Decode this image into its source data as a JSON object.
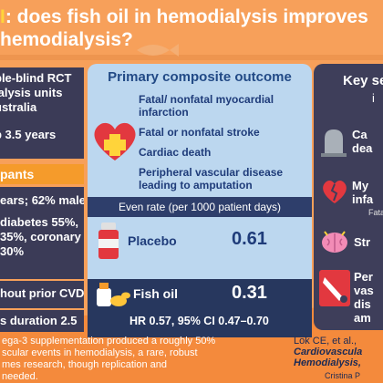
{
  "header": {
    "line1_accent": "I",
    "line1_rest": ": does fish oil in hemodialysis improves",
    "line2": "hemodialysis?"
  },
  "left_panel": {
    "design_lines": [
      "ble-blind RCT",
      "ialysis units",
      "ustralia"
    ],
    "followup": "p 3.5 years",
    "participants_label": "pants",
    "demographics": "ears; 62% male",
    "comorbidities_lines": [
      "diabetes 55%,",
      "35%, coronary",
      "30%"
    ],
    "prior_cvd": "hout prior CVD",
    "duration": "s duration 2.5"
  },
  "center_panel": {
    "title": "Primary composite outcome",
    "outcomes": [
      "Fatal/ nonfatal myocardial infarction",
      "Fatal or nonfatal stroke",
      "Cardiac death",
      "Peripheral vascular disease leading to amputation"
    ],
    "event_rate_header": "Even rate (per 1000 patient days)",
    "placebo_label": "Placebo",
    "placebo_value": "0.61",
    "fishoil_label": "Fish oil",
    "fishoil_value": "0.31",
    "hazard_ratio": "HR 0.57, 95% CI 0.47–0.70"
  },
  "right_panel": {
    "title": "Key se",
    "subtitle": "i",
    "items": [
      {
        "lines": [
          "Ca",
          "dea"
        ],
        "note": ""
      },
      {
        "lines": [
          "My",
          "infa"
        ],
        "note": "Fata"
      },
      {
        "lines": [
          "Str"
        ],
        "note": ""
      },
      {
        "lines": [
          "Per",
          "vas",
          "dis",
          "am"
        ],
        "note": ""
      }
    ]
  },
  "bottom": {
    "summary_lines": [
      "ega-3 supplementation produced a roughly 50%",
      "scular events in hemodialysis, a rare, robust",
      "mes research, though replication and",
      "needed."
    ],
    "citation_lines": [
      "Lok CE, et al.,",
      "Cardiovascula",
      "Hemodialysis,"
    ],
    "credit": "Cristina P"
  },
  "colors": {
    "background_orange": "#f7a05a",
    "panel_dark": "#3b3b57",
    "panel_light_blue": "#bcd7ef",
    "accent_yellow": "#ffd43a",
    "navy_text": "#1f3c7a"
  },
  "icons": [
    "heart-cross-icon",
    "pill-bottle-icon",
    "fish-oil-icon",
    "tombstone-icon",
    "broken-heart-icon",
    "brain-icon",
    "saw-icon",
    "fish-icon"
  ]
}
